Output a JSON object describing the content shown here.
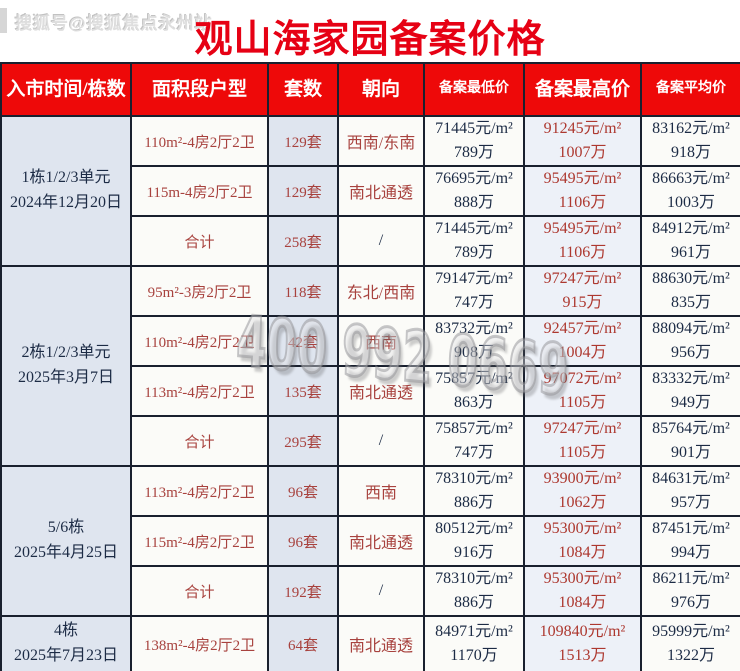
{
  "watermarks": {
    "top_left": "搜狐号@搜狐焦点永州站",
    "phone": "400 992 0669"
  },
  "title": "观山海家园备案价格",
  "table": {
    "headers": [
      "入市时间/栋数",
      "面积段户型",
      "套数",
      "朝向",
      "备案最低价",
      "备案最高价",
      "备案平均价"
    ],
    "groups": [
      {
        "label1": "1栋1/2/3单元",
        "label2": "2024年12月20日",
        "rows": [
          {
            "area": "110m²-4房2厅2卫",
            "units": "129套",
            "orientation": "西南/东南",
            "min_price": "71445元/m²",
            "min_total": "789万",
            "max_price": "91245元/m²",
            "max_total": "1007万",
            "avg_price": "83162元/m²",
            "avg_total": "918万"
          },
          {
            "area": "115m-4房2厅2卫",
            "units": "129套",
            "orientation": "南北通透",
            "min_price": "76695元/m²",
            "min_total": "888万",
            "max_price": "95495元/m²",
            "max_total": "1106万",
            "avg_price": "86663元/m²",
            "avg_total": "1003万"
          },
          {
            "area": "合计",
            "units": "258套",
            "orientation": "/",
            "min_price": "71445元/m²",
            "min_total": "789万",
            "max_price": "95495元/m²",
            "max_total": "1106万",
            "avg_price": "84912元/m²",
            "avg_total": "961万"
          }
        ]
      },
      {
        "label1": "2栋1/2/3单元",
        "label2": "2025年3月7日",
        "rows": [
          {
            "area": "95m²-3房2厅2卫",
            "units": "118套",
            "orientation": "东北/西南",
            "min_price": "79147元/m²",
            "min_total": "747万",
            "max_price": "97247元/m²",
            "max_total": "915万",
            "avg_price": "88630元/m²",
            "avg_total": "835万"
          },
          {
            "area": "110m²-4房2厅2卫",
            "units": "42套",
            "orientation": "西南",
            "min_price": "83732元/m²",
            "min_total": "908万",
            "max_price": "92457元/m²",
            "max_total": "1004万",
            "avg_price": "88094元/m²",
            "avg_total": "956万"
          },
          {
            "area": "113m²-4房2厅2卫",
            "units": "135套",
            "orientation": "南北通透",
            "min_price": "75857元/m²",
            "min_total": "863万",
            "max_price": "97072元/m²",
            "max_total": "1105万",
            "avg_price": "83332元/m²",
            "avg_total": "949万"
          },
          {
            "area": "合计",
            "units": "295套",
            "orientation": "/",
            "min_price": "75857元/m²",
            "min_total": "747万",
            "max_price": "97247元/m²",
            "max_total": "1105万",
            "avg_price": "85764元/m²",
            "avg_total": "901万"
          }
        ]
      },
      {
        "label1": "5/6栋",
        "label2": "2025年4月25日",
        "rows": [
          {
            "area": "113m²-4房2厅2卫",
            "units": "96套",
            "orientation": "西南",
            "min_price": "78310元/m²",
            "min_total": "886万",
            "max_price": "93900元/m²",
            "max_total": "1062万",
            "avg_price": "84631元/m²",
            "avg_total": "957万"
          },
          {
            "area": "115m²-4房2厅2卫",
            "units": "96套",
            "orientation": "南北通透",
            "min_price": "80512元/m²",
            "min_total": "916万",
            "max_price": "95300元/m²",
            "max_total": "1084万",
            "avg_price": "87451元/m²",
            "avg_total": "994万"
          },
          {
            "area": "合计",
            "units": "192套",
            "orientation": "/",
            "min_price": "78310元/m²",
            "min_total": "886万",
            "max_price": "95300元/m²",
            "max_total": "1084万",
            "avg_price": "86211元/m²",
            "avg_total": "976万"
          }
        ]
      },
      {
        "label1": "4栋",
        "label2": "2025年7月23日",
        "rows": [
          {
            "area": "138m²-4房2厅2卫",
            "units": "64套",
            "orientation": "南北通透",
            "min_price": "84971元/m²",
            "min_total": "1170万",
            "max_price": "109840元/m²",
            "max_total": "1513万",
            "avg_price": "95999元/m²",
            "avg_total": "1322万"
          }
        ]
      }
    ]
  }
}
